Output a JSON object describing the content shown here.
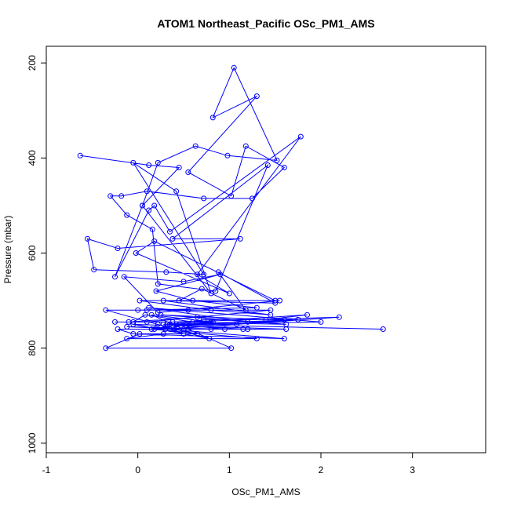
{
  "chart_data": {
    "type": "line",
    "title": "ATOM1 Northeast_Pacific OSc_PM1_AMS",
    "xlabel": "OSc_PM1_AMS",
    "ylabel": "Pressure (mbar)",
    "xlim": [
      -1.0,
      3.8
    ],
    "ylim": [
      1020,
      165
    ],
    "y_axis_inverted": true,
    "x_ticks": [
      -1,
      0,
      1,
      2,
      3
    ],
    "y_ticks": [
      200,
      400,
      600,
      800,
      1000
    ],
    "grid": false,
    "legend": "none",
    "series_color": "#0000ff",
    "marker": "open-circle",
    "series": [
      {
        "x": [
          -0.63,
          0.12,
          0.45,
          0.05,
          0.22,
          0.63,
          0.98,
          1.52,
          1.05,
          0.82,
          1.3,
          0.55,
          1.02,
          1.18,
          1.6,
          1.25,
          0.72,
          0.1,
          -0.18,
          -0.3,
          -0.12,
          0.16,
          0.22,
          0.85,
          1.42,
          0.38,
          1.12,
          -0.22,
          -0.55,
          -0.48,
          0.31,
          0.72,
          -0.05,
          0.42,
          0.8,
          0.05,
          -0.25,
          0.12,
          0.18,
          0.35,
          1.78,
          0.65,
          1.0,
          -0.02,
          0.18,
          1.5,
          0.45,
          0.7,
          1.18,
          0.88,
          1.5,
          0.28,
          1.45,
          0.8,
          0.02,
          1.55,
          0.22,
          -0.15,
          0.5,
          0.9,
          0.2,
          0.6,
          1.3,
          0.0,
          1.45,
          0.1,
          0.82,
          -0.05,
          0.08,
          0.6,
          0.35,
          1.2,
          0.18,
          0.72,
          1.6,
          0.4,
          0.65,
          0.28,
          -0.12,
          1.3,
          0.15,
          0.22,
          0.5,
          0.02,
          -0.35,
          1.02,
          0.55,
          0.8,
          -0.22,
          -0.05,
          1.6,
          0.3,
          1.75,
          0.42,
          0.95,
          -0.12,
          0.5,
          0.15,
          0.8,
          -0.25,
          -0.1,
          0.65,
          1.2,
          0.12,
          2.0,
          0.28,
          1.85,
          1.4,
          0.25,
          1.62,
          0.38,
          2.2,
          1.08,
          0.35,
          2.68,
          0.32,
          1.15,
          1.62,
          -0.05,
          0.78,
          -0.35,
          0.55,
          0.1
        ],
        "y": [
          395,
          415,
          420,
          500,
          410,
          375,
          395,
          405,
          210,
          315,
          270,
          430,
          480,
          375,
          420,
          485,
          485,
          470,
          480,
          480,
          520,
          550,
          665,
          680,
          415,
          570,
          570,
          590,
          570,
          635,
          640,
          645,
          410,
          470,
          685,
          500,
          650,
          510,
          500,
          555,
          355,
          645,
          685,
          600,
          575,
          700,
          700,
          675,
          720,
          640,
          705,
          700,
          730,
          720,
          700,
          700,
          725,
          650,
          660,
          645,
          680,
          700,
          715,
          720,
          720,
          745,
          745,
          745,
          730,
          745,
          760,
          760,
          760,
          740,
          740,
          760,
          770,
          770,
          780,
          780,
          760,
          750,
          770,
          770,
          800,
          800,
          760,
          760,
          760,
          770,
          780,
          760,
          740,
          750,
          760,
          755,
          760,
          730,
          745,
          745,
          745,
          735,
          745,
          715,
          745,
          750,
          730,
          740,
          730,
          750,
          745,
          735,
          750,
          750,
          760,
          750,
          760,
          760,
          750,
          780,
          720,
          720,
          720
        ]
      }
    ]
  }
}
